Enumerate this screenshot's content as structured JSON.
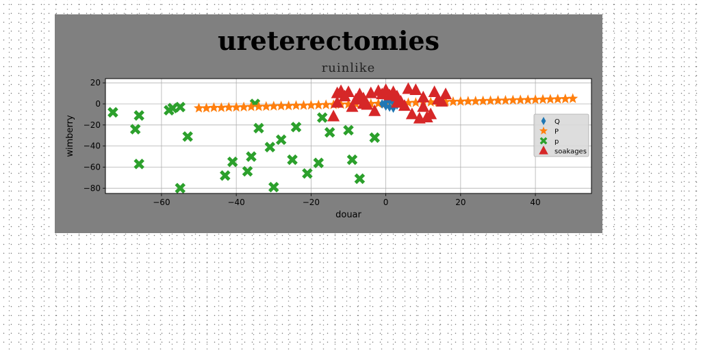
{
  "figure_title": "ureterectomies",
  "chart_data": {
    "type": "scatter",
    "title": "ruinlike",
    "xlabel": "douar",
    "ylabel": "wimberry",
    "xlim": [
      -75,
      55
    ],
    "ylim": [
      -85,
      24
    ],
    "xticks": [
      -60,
      -40,
      -20,
      0,
      20,
      40
    ],
    "yticks": [
      20,
      0,
      -20,
      -40,
      -60,
      -80
    ],
    "grid": true,
    "legend_position": "center-right",
    "series": [
      {
        "name": "Q",
        "marker": "diamond",
        "color": "#1f77b4",
        "points": [
          [
            -1,
            0
          ],
          [
            0,
            2
          ],
          [
            1,
            -3
          ],
          [
            1,
            3
          ],
          [
            2,
            1
          ],
          [
            3,
            -1
          ],
          [
            0,
            -2
          ],
          [
            2,
            -4
          ]
        ]
      },
      {
        "name": "P",
        "marker": "star",
        "color": "#ff7f0e",
        "points": [
          [
            -50,
            -4
          ],
          [
            -48,
            -4
          ],
          [
            -46,
            -3.6
          ],
          [
            -44,
            -3.6
          ],
          [
            -42,
            -3.3
          ],
          [
            -40,
            -3.2
          ],
          [
            -38,
            -3
          ],
          [
            -36,
            -2.7
          ],
          [
            -34,
            -2.6
          ],
          [
            -32,
            -2.5
          ],
          [
            -30,
            -2.2
          ],
          [
            -28,
            -2
          ],
          [
            -26,
            -1.9
          ],
          [
            -24,
            -1.6
          ],
          [
            -22,
            -1.5
          ],
          [
            -20,
            -1.3
          ],
          [
            -18,
            -1.1
          ],
          [
            -16,
            -0.9
          ],
          [
            -14,
            -0.8
          ],
          [
            -12,
            -0.5
          ],
          [
            -10,
            -0.4
          ],
          [
            -8,
            -0.2
          ],
          [
            -6,
            0
          ],
          [
            -4,
            0.1
          ],
          [
            -2,
            0.3
          ],
          [
            0,
            0.5
          ],
          [
            2,
            0.7
          ],
          [
            4,
            0.8
          ],
          [
            6,
            1
          ],
          [
            8,
            1.2
          ],
          [
            10,
            1.4
          ],
          [
            12,
            1.6
          ],
          [
            14,
            1.7
          ],
          [
            16,
            1.9
          ],
          [
            18,
            2.1
          ],
          [
            20,
            2.3
          ],
          [
            22,
            2.5
          ],
          [
            24,
            2.6
          ],
          [
            26,
            2.8
          ],
          [
            28,
            3
          ],
          [
            30,
            3.2
          ],
          [
            32,
            3.3
          ],
          [
            34,
            3.5
          ],
          [
            36,
            3.7
          ],
          [
            38,
            3.8
          ],
          [
            40,
            4
          ],
          [
            42,
            4.2
          ],
          [
            44,
            4.4
          ],
          [
            46,
            4.5
          ],
          [
            48,
            4.7
          ],
          [
            50,
            5
          ]
        ]
      },
      {
        "name": "p",
        "marker": "x",
        "color": "#2ca02c",
        "points": [
          [
            -73,
            -8
          ],
          [
            -67,
            -24
          ],
          [
            -66,
            -11
          ],
          [
            -66,
            -57
          ],
          [
            -58,
            -6
          ],
          [
            -57,
            -4
          ],
          [
            -55,
            -3
          ],
          [
            -55,
            -80
          ],
          [
            -53,
            -31
          ],
          [
            -43,
            -68
          ],
          [
            -41,
            -55
          ],
          [
            -37,
            -64
          ],
          [
            -36,
            -50
          ],
          [
            -35,
            0
          ],
          [
            -34,
            -23
          ],
          [
            -31,
            -41
          ],
          [
            -30,
            -79
          ],
          [
            -28,
            -34
          ],
          [
            -25,
            -53
          ],
          [
            -24,
            -22
          ],
          [
            -21,
            -66
          ],
          [
            -18,
            -56
          ],
          [
            -17,
            -13
          ],
          [
            -15,
            -27
          ],
          [
            -10,
            -25
          ],
          [
            -9,
            -53
          ],
          [
            -7,
            -71
          ],
          [
            -3,
            -32
          ]
        ]
      },
      {
        "name": "soakages",
        "marker": "triangle",
        "color": "#d62728",
        "points": [
          [
            -14,
            -12
          ],
          [
            -13,
            10
          ],
          [
            -12,
            12
          ],
          [
            -11,
            7
          ],
          [
            -10,
            11
          ],
          [
            -9,
            -3
          ],
          [
            -8,
            4
          ],
          [
            -7,
            9
          ],
          [
            -6,
            5
          ],
          [
            -5,
            -1
          ],
          [
            -4,
            10
          ],
          [
            -3,
            -7
          ],
          [
            -2,
            12
          ],
          [
            -1,
            9
          ],
          [
            0,
            13
          ],
          [
            1,
            8
          ],
          [
            2,
            11
          ],
          [
            3,
            7
          ],
          [
            4,
            2
          ],
          [
            5,
            -2
          ],
          [
            6,
            14
          ],
          [
            7,
            -10
          ],
          [
            8,
            13
          ],
          [
            9,
            -14
          ],
          [
            10,
            6
          ],
          [
            11,
            -13
          ],
          [
            12,
            -10
          ],
          [
            13,
            11
          ],
          [
            14,
            4
          ],
          [
            15,
            2
          ],
          [
            16,
            9
          ],
          [
            -13,
            1
          ],
          [
            -6,
            0
          ],
          [
            3,
            1
          ],
          [
            10,
            -3
          ]
        ]
      }
    ]
  }
}
